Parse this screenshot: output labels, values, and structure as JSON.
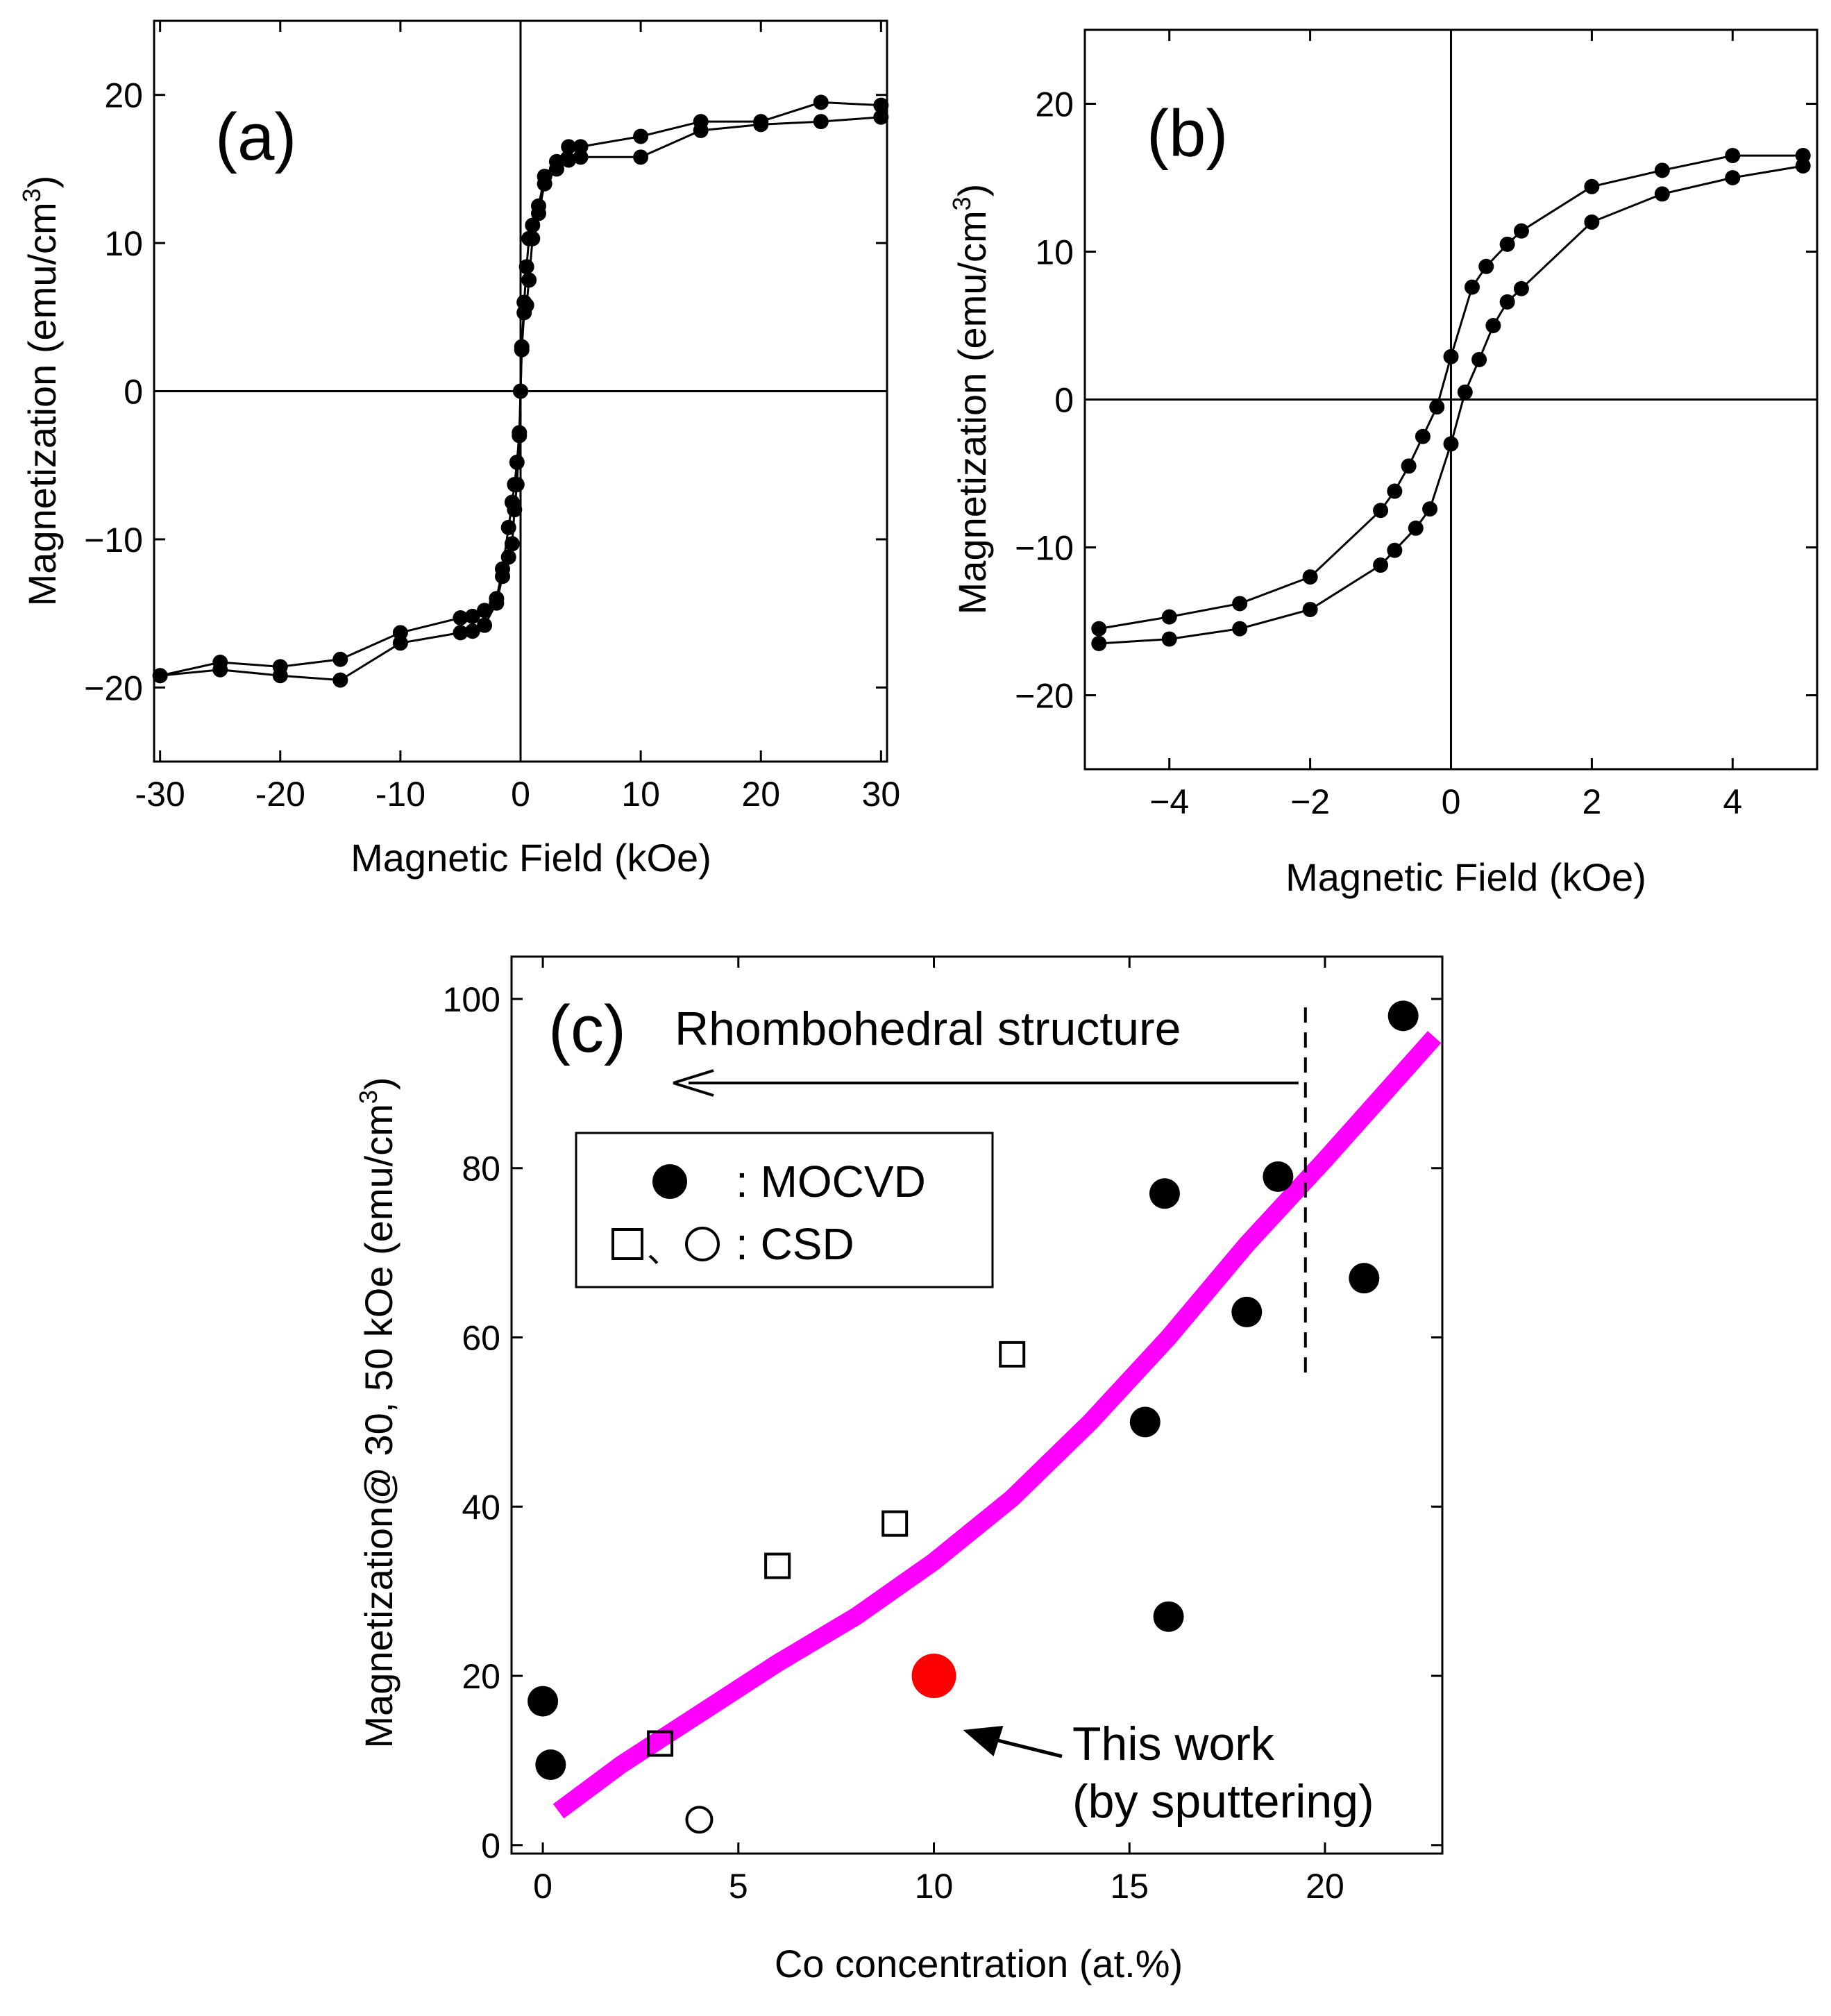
{
  "chart_data": [
    {
      "panel": "(a)",
      "type": "line",
      "xlabel": "Magnetic Field (kOe)",
      "ylabel": "Magnetization (emu/cm",
      "ylabel_sup": "3",
      "ylabel_close": ")",
      "xlim": [
        -30.5,
        30.5
      ],
      "ylim": [
        -25,
        25
      ],
      "xticks": [
        -30,
        -20,
        -10,
        0,
        10,
        20,
        30
      ],
      "xtick_labels": [
        "-30",
        "-20",
        "-10",
        "0",
        "10",
        "20",
        "30"
      ],
      "yticks": [
        -20,
        -10,
        0,
        10,
        20
      ],
      "ytick_labels": [
        "−20",
        "−10",
        "0",
        "10",
        "20"
      ],
      "zero_lines": true,
      "marker_color": "#000000",
      "series": [
        {
          "x": [
            30,
            25,
            20,
            15,
            10,
            5,
            4,
            3,
            2,
            1.5,
            1,
            0.7,
            0.5,
            0.3,
            0.1,
            0,
            -0.1,
            -0.3,
            -0.5,
            -0.7,
            -1,
            -1.5,
            -2,
            -3,
            -4,
            -5,
            -10,
            -15,
            -20,
            -25,
            -30
          ],
          "y": [
            19.3,
            19.5,
            18.2,
            18.2,
            17.2,
            16.5,
            16.5,
            15.5,
            14.5,
            12.5,
            11.2,
            10.3,
            8.4,
            6.0,
            3.0,
            0.0,
            -2.8,
            -4.8,
            -6.3,
            -7.5,
            -9.2,
            -12.0,
            -14.0,
            -14.8,
            -15.2,
            -15.3,
            -16.3,
            -18.1,
            -18.6,
            -18.3,
            -19.2
          ]
        },
        {
          "x": [
            -30,
            -25,
            -20,
            -15,
            -10,
            -5,
            -4,
            -3,
            -2,
            -1.5,
            -1,
            -0.7,
            -0.5,
            -0.3,
            -0.1,
            0,
            0.1,
            0.3,
            0.5,
            0.7,
            1,
            1.5,
            2,
            3,
            4,
            5,
            10,
            15,
            20,
            25,
            30
          ],
          "y": [
            -19.2,
            -18.8,
            -19.2,
            -19.5,
            -17.0,
            -16.3,
            -16.2,
            -15.8,
            -14.3,
            -12.5,
            -11.2,
            -10.3,
            -8.0,
            -6.3,
            -3.0,
            0.0,
            2.8,
            5.3,
            5.8,
            7.5,
            10.3,
            12.0,
            14.0,
            15.0,
            15.6,
            15.8,
            15.8,
            17.6,
            18.0,
            18.2,
            18.5
          ]
        }
      ]
    },
    {
      "panel": "(b)",
      "type": "line",
      "xlabel": "Magnetic Field (kOe)",
      "ylabel": "Magnetization (emu/cm",
      "ylabel_sup": "3",
      "ylabel_close": ")",
      "xlim": [
        -5.2,
        5.2
      ],
      "ylim": [
        -25,
        25
      ],
      "xticks": [
        -4,
        -2,
        0,
        2,
        4
      ],
      "xtick_labels": [
        "−4",
        "−2",
        "0",
        "2",
        "4"
      ],
      "yticks": [
        -20,
        -10,
        0,
        10,
        20
      ],
      "ytick_labels": [
        "−20",
        "−10",
        "0",
        "10",
        "20"
      ],
      "zero_lines": true,
      "marker_color": "#000000",
      "series": [
        {
          "x": [
            5,
            4,
            3,
            2,
            1,
            0.8,
            0.5,
            0.3,
            0,
            -0.2,
            -0.4,
            -0.6,
            -0.8,
            -1,
            -2,
            -3,
            -4,
            -5
          ],
          "y": [
            16.5,
            16.5,
            15.5,
            14.4,
            11.4,
            10.5,
            9.0,
            7.6,
            2.9,
            -0.5,
            -2.5,
            -4.5,
            -6.2,
            -7.5,
            -12.0,
            -13.8,
            -14.7,
            -15.5
          ]
        },
        {
          "x": [
            -5,
            -4,
            -3,
            -2,
            -1,
            -0.8,
            -0.5,
            -0.3,
            0,
            0.2,
            0.4,
            0.6,
            0.8,
            1,
            2,
            3,
            4,
            5
          ],
          "y": [
            -16.5,
            -16.2,
            -15.5,
            -14.2,
            -11.2,
            -10.2,
            -8.7,
            -7.4,
            -3.0,
            0.5,
            2.7,
            5.0,
            6.6,
            7.5,
            12.0,
            13.9,
            15.0,
            15.8
          ]
        }
      ]
    },
    {
      "panel": "(c)",
      "type": "scatter",
      "xlabel": "Co concentration (at.%)",
      "ylabel": "Magnetization@ 30, 50 kOe (emu/cm",
      "ylabel_sup": "3",
      "ylabel_close": ")",
      "xlim": [
        -0.8,
        23
      ],
      "ylim": [
        -1,
        105
      ],
      "xticks": [
        0,
        5,
        10,
        15,
        20
      ],
      "xtick_labels": [
        "0",
        "5",
        "10",
        "15",
        "20"
      ],
      "yticks": [
        0,
        20,
        40,
        60,
        80,
        100
      ],
      "ytick_labels": [
        "0",
        "20",
        "40",
        "60",
        "80",
        "100"
      ],
      "series": [
        {
          "name": ": MOCVD",
          "marker": "filled-circle",
          "color": "#000000",
          "x": [
            0,
            0.2,
            15.4,
            15.9,
            16,
            18,
            18.8,
            21,
            22
          ],
          "y": [
            17,
            9.5,
            50,
            77,
            27,
            63,
            79,
            67,
            98
          ]
        },
        {
          "name": ": CSD",
          "marker": "open-square",
          "color": "#000000",
          "x": [
            3,
            6,
            9,
            12
          ],
          "y": [
            12,
            33,
            38,
            58
          ]
        },
        {
          "marker": "open-circle",
          "color": "#000000",
          "x": [
            4
          ],
          "y": [
            3
          ]
        },
        {
          "marker": "filled-circle",
          "color": "#ff0000",
          "x": [
            10
          ],
          "y": [
            20
          ]
        }
      ],
      "trend_curve": {
        "color": "#ff00ff",
        "x": [
          0.4,
          2,
          4,
          6,
          8,
          10,
          12,
          14,
          16,
          18,
          20,
          22.8
        ],
        "y": [
          4,
          9.5,
          15.5,
          21.5,
          27,
          33.5,
          41,
          50,
          60,
          71,
          81,
          95.5
        ]
      },
      "boundary_x": 19.5,
      "boundary_y_range": [
        55,
        99
      ],
      "annotations": {
        "structure_label": "Rhombohedral structure",
        "this_work_line1": "This work",
        "this_work_line2": "(by sputtering)"
      },
      "legend_position": "upper-left",
      "legend_separator": "、"
    }
  ]
}
